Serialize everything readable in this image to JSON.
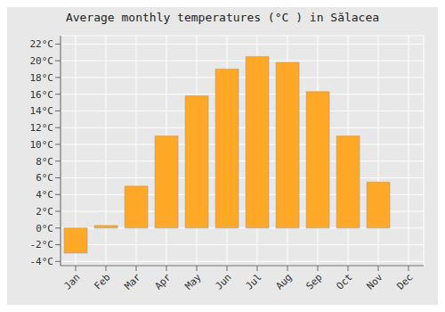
{
  "chart_data": {
    "type": "bar",
    "title": "Average monthly temperatures (°C ) in Sălacea",
    "categories": [
      "Jan",
      "Feb",
      "Mar",
      "Apr",
      "May",
      "Jun",
      "Jul",
      "Aug",
      "Sep",
      "Oct",
      "Nov",
      "Dec"
    ],
    "values": [
      -3.0,
      0.3,
      5.0,
      11.0,
      15.8,
      19.0,
      20.5,
      19.8,
      16.3,
      11.0,
      5.5,
      0.0
    ],
    "color": "#FFA726",
    "ylim": [
      -4.5,
      23.0
    ],
    "yticks": [
      {
        "value": -4,
        "label": "-4°C"
      },
      {
        "value": -2,
        "label": "-2°C"
      },
      {
        "value": 0,
        "label": "0°C"
      },
      {
        "value": 2,
        "label": "2°C"
      },
      {
        "value": 4,
        "label": "4°C"
      },
      {
        "value": 6,
        "label": "6°C"
      },
      {
        "value": 8,
        "label": "8°C"
      },
      {
        "value": 10,
        "label": "10°C"
      },
      {
        "value": 12,
        "label": "12°C"
      },
      {
        "value": 14,
        "label": "14°C"
      },
      {
        "value": 16,
        "label": "16°C"
      },
      {
        "value": 18,
        "label": "18°C"
      },
      {
        "value": 20,
        "label": "20°C"
      },
      {
        "value": 22,
        "label": "22°C"
      }
    ],
    "grid": true
  }
}
